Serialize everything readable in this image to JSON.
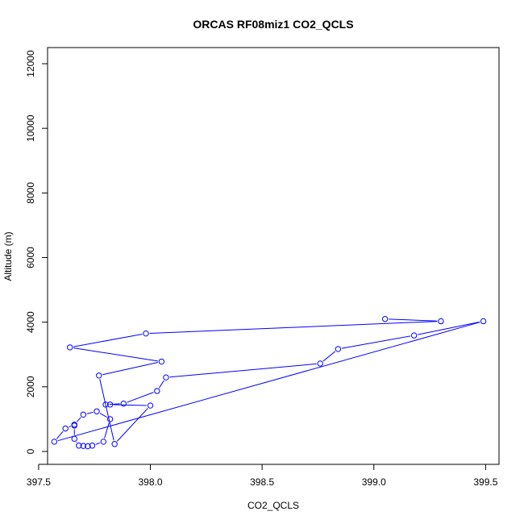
{
  "chart_data": {
    "type": "line",
    "title": "ORCAS RF08miz1 CO2_QCLS",
    "xlabel": "CO2_QCLS",
    "ylabel": "Altitude (m)",
    "xlim": [
      397.54,
      399.56
    ],
    "ylim": [
      -400,
      12500
    ],
    "x_ticks": [
      397.5,
      398.0,
      398.5,
      399.0,
      399.5
    ],
    "x_tick_labels": [
      "397.5",
      "398.0",
      "398.5",
      "399.0",
      "399.5"
    ],
    "y_ticks": [
      0,
      2000,
      4000,
      6000,
      8000,
      10000,
      12000
    ],
    "y_tick_labels": [
      "0",
      "2000",
      "4000",
      "6000",
      "8000",
      "10000",
      "12000"
    ],
    "grid": false,
    "legend": "none",
    "colors": {
      "series": "#0000ff",
      "frame": "#000000"
    },
    "series": [
      {
        "marker": "open-circle",
        "points": [
          {
            "x": 399.05,
            "y": 4100
          },
          {
            "x": 399.3,
            "y": 4030
          },
          {
            "x": 397.98,
            "y": 3650
          },
          {
            "x": 397.64,
            "y": 3220
          },
          {
            "x": 398.05,
            "y": 2780
          },
          {
            "x": 397.77,
            "y": 2350
          },
          {
            "x": 397.84,
            "y": 230
          },
          {
            "x": 398.0,
            "y": 1420
          },
          {
            "x": 397.82,
            "y": 1450
          },
          {
            "x": 397.8,
            "y": 1450
          },
          {
            "x": 397.88,
            "y": 1480
          },
          {
            "x": 398.03,
            "y": 1870
          },
          {
            "x": 398.07,
            "y": 2290
          },
          {
            "x": 398.76,
            "y": 2720
          },
          {
            "x": 398.84,
            "y": 3170
          },
          {
            "x": 399.18,
            "y": 3590
          },
          {
            "x": 399.49,
            "y": 4030
          },
          {
            "x": 397.57,
            "y": 300
          },
          {
            "x": 397.62,
            "y": 710
          },
          {
            "x": 397.66,
            "y": 830
          },
          {
            "x": 397.7,
            "y": 1140
          },
          {
            "x": 397.76,
            "y": 1240
          },
          {
            "x": 397.82,
            "y": 1000
          },
          {
            "x": 397.79,
            "y": 300
          },
          {
            "x": 397.74,
            "y": 180
          },
          {
            "x": 397.72,
            "y": 160
          },
          {
            "x": 397.7,
            "y": 170
          },
          {
            "x": 397.68,
            "y": 180
          },
          {
            "x": 397.66,
            "y": 390
          },
          {
            "x": 397.66,
            "y": 800
          }
        ]
      }
    ]
  }
}
